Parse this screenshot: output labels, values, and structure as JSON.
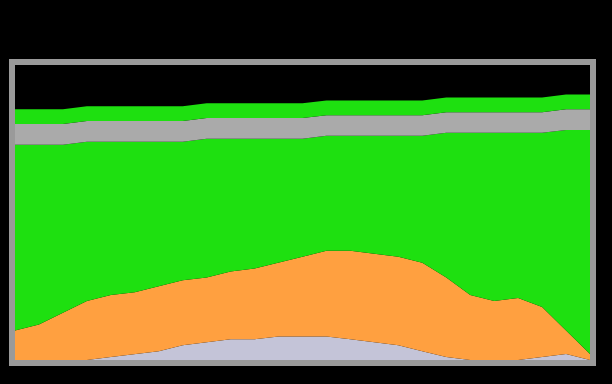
{
  "chart_data": {
    "type": "area",
    "stacked": true,
    "tick_labels": false,
    "grid": false,
    "x": [
      0,
      1,
      2,
      3,
      4,
      5,
      6,
      7,
      8,
      9,
      10,
      11,
      12,
      13,
      14,
      15,
      16,
      17,
      18,
      19,
      20,
      21,
      22,
      23,
      24
    ],
    "xlim": [
      0,
      24
    ],
    "ylim": [
      0,
      100
    ],
    "series": [
      {
        "color": "#c4c4d8",
        "values": [
          0,
          0,
          0,
          0,
          1,
          2,
          3,
          5,
          6,
          7,
          7,
          8,
          8,
          8,
          7,
          6,
          5,
          3,
          1,
          0,
          0,
          0,
          1,
          2,
          0
        ]
      },
      {
        "color": "#ffa040",
        "values": [
          10,
          12,
          16,
          20,
          21,
          21,
          22,
          22,
          22,
          23,
          24,
          25,
          27,
          29,
          30,
          30,
          30,
          30,
          27,
          22,
          20,
          21,
          17,
          8,
          2
        ]
      },
      {
        "color": "#1ee010",
        "values": [
          63,
          61,
          57,
          54,
          52,
          51,
          49,
          47,
          47,
          45,
          44,
          42,
          40,
          39,
          39,
          40,
          41,
          43,
          49,
          55,
          57,
          56,
          59,
          68,
          76
        ]
      },
      {
        "color": "#aaaaaa",
        "values": [
          7,
          7,
          7,
          7,
          7,
          7,
          7,
          7,
          7,
          7,
          7,
          7,
          7,
          7,
          7,
          7,
          7,
          7,
          7,
          7,
          7,
          7,
          7,
          7,
          7
        ]
      },
      {
        "color": "#1ee010",
        "values": [
          5,
          5,
          5,
          5,
          5,
          5,
          5,
          5,
          5,
          5,
          5,
          5,
          5,
          5,
          5,
          5,
          5,
          5,
          5,
          5,
          5,
          5,
          5,
          5,
          5
        ]
      }
    ]
  }
}
